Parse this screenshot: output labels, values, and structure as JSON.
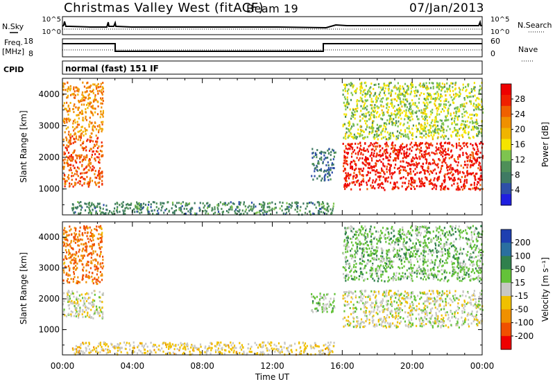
{
  "header": {
    "title": "Christmas Valley West (fitACF)",
    "beam": "Beam 19",
    "date": "07/Jan/2013"
  },
  "nsky_panel": {
    "left_label": "N.Sky",
    "left_ticks": [
      "10^5",
      "10^0"
    ],
    "right_label": "N.Search",
    "right_ticks": [
      "10^5",
      "10^0"
    ]
  },
  "freq_panel": {
    "left_label_1": "Freq.",
    "left_label_2": "[MHz]",
    "left_ticks": [
      "18",
      "8"
    ],
    "right_label": "Nave",
    "right_ticks": [
      "60",
      "0"
    ]
  },
  "cpid_panel": {
    "label": "CPID",
    "value": "normal (fast) 151 IF"
  },
  "colors": {
    "power_scale": [
      "#1f1fe0",
      "#2e4fa8",
      "#3f7a63",
      "#4e8f58",
      "#7ec44f",
      "#f5e400",
      "#f0b400",
      "#f09000",
      "#f06000",
      "#f02000",
      "#ee0000"
    ],
    "velocity_scale": [
      "#1e3fb0",
      "#2a6fa0",
      "#30804d",
      "#64c239",
      "#c8c8c4",
      "#f0c000",
      "#f09000",
      "#f05000",
      "#ee0000"
    ],
    "ground_scatter": "#c8c8c4"
  },
  "chart_data": [
    {
      "type": "heatmap",
      "name": "power",
      "ylabel": "Slant Range [km]",
      "yticks": [
        1000,
        2000,
        3000,
        4000
      ],
      "ylim": [
        180,
        4500
      ],
      "xlim_hours": [
        0,
        24
      ],
      "colorbar": {
        "label": "Power [dB]",
        "ticks": [
          "28",
          "24",
          "20",
          "16",
          "12",
          "8",
          "4"
        ],
        "range": [
          0,
          32
        ]
      },
      "regions": [
        {
          "t": [
            0.0,
            2.3
          ],
          "r": [
            1100,
            2700
          ],
          "value_db": 26
        },
        {
          "t": [
            0.0,
            2.3
          ],
          "r": [
            2700,
            4400
          ],
          "value_db": 22
        },
        {
          "t": [
            0.5,
            15.5
          ],
          "r": [
            220,
            620
          ],
          "value_db": 8
        },
        {
          "t": [
            14.2,
            15.6
          ],
          "r": [
            1300,
            2300
          ],
          "value_db": 6
        },
        {
          "t": [
            16.0,
            24.0
          ],
          "r": [
            1000,
            2500
          ],
          "value_db": 30
        },
        {
          "t": [
            16.0,
            24.0
          ],
          "r": [
            2600,
            4400
          ],
          "value_db": 14
        }
      ]
    },
    {
      "type": "heatmap",
      "name": "velocity",
      "ylabel": "Slant Range [km]",
      "yticks": [
        1000,
        2000,
        3000,
        4000
      ],
      "ylim": [
        180,
        4500
      ],
      "xlim_hours": [
        0,
        24
      ],
      "xticks": [
        "00:00",
        "04:00",
        "08:00",
        "12:00",
        "16:00",
        "20:00",
        "00:00"
      ],
      "xlabel": "Time UT",
      "colorbar": {
        "label": "Velocity [m s⁻¹]",
        "ticks": [
          "200",
          "100",
          "50",
          "15",
          "-15",
          "-50",
          "-100",
          "-200"
        ],
        "range": [
          -250,
          250
        ]
      },
      "regions": [
        {
          "t": [
            0.0,
            2.3
          ],
          "r": [
            1400,
            2300
          ],
          "value_ms": 0
        },
        {
          "t": [
            0.0,
            2.3
          ],
          "r": [
            2500,
            4400
          ],
          "value_ms": -150
        },
        {
          "t": [
            0.5,
            15.5
          ],
          "r": [
            220,
            620
          ],
          "value_ms": -40
        },
        {
          "t": [
            14.2,
            15.6
          ],
          "r": [
            1600,
            2200
          ],
          "value_ms": 40
        },
        {
          "t": [
            16.0,
            24.0
          ],
          "r": [
            1100,
            2300
          ],
          "value_ms": 0
        },
        {
          "t": [
            16.0,
            24.0
          ],
          "r": [
            2600,
            4400
          ],
          "value_ms": 60
        }
      ]
    }
  ]
}
